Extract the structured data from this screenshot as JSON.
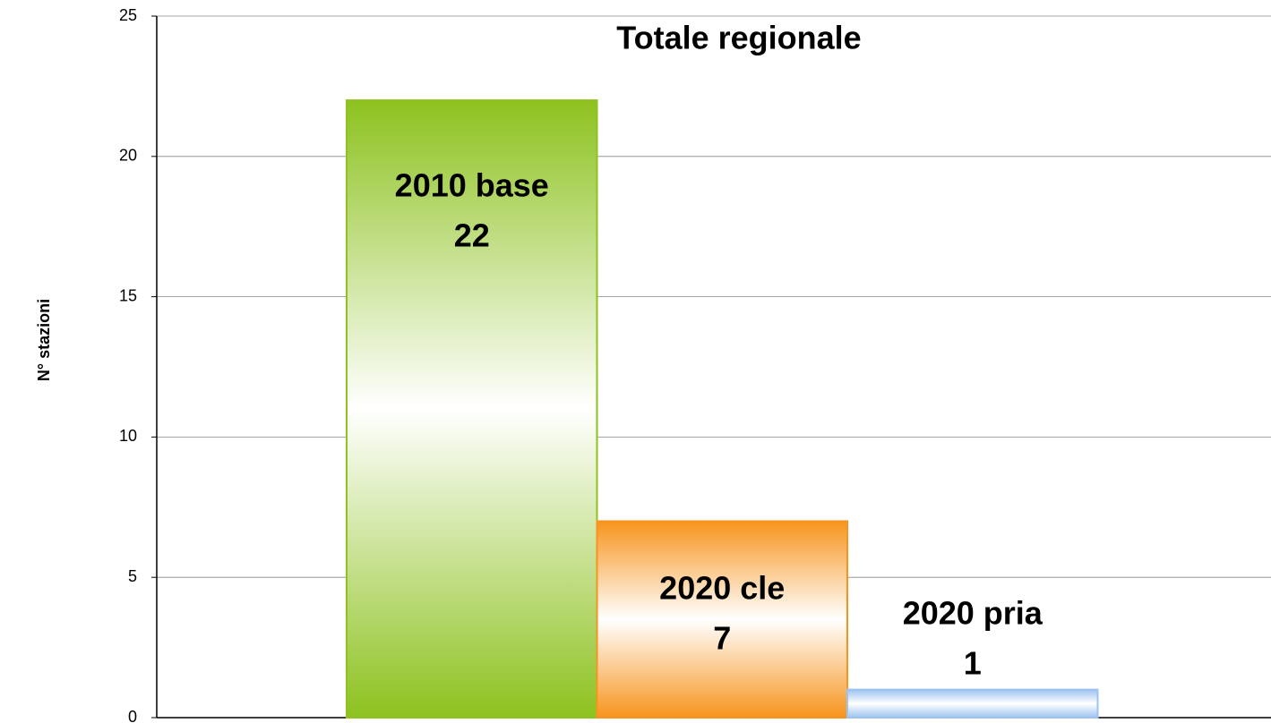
{
  "chart_data": {
    "type": "bar",
    "title": "Totale regionale",
    "y_label": "N° stazioni",
    "categories": [
      "2010 base",
      "2020 cle",
      "2020 pria"
    ],
    "values": [
      22,
      7,
      1
    ],
    "colors": [
      "#8dc21f",
      "#f7941d",
      "#9dc3f0"
    ],
    "ylim": [
      0,
      25
    ],
    "yticks": [
      0,
      5,
      10,
      15,
      20,
      25
    ],
    "grid": true
  }
}
